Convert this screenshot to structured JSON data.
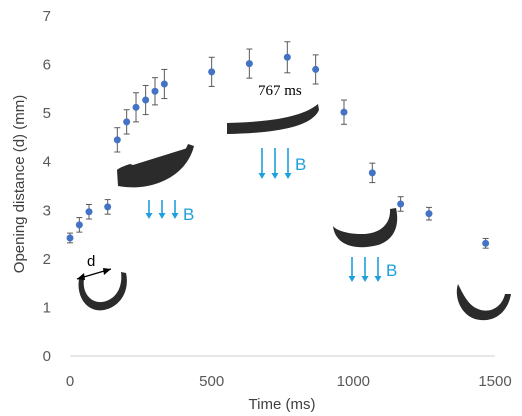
{
  "chart_data": {
    "type": "scatter",
    "xlabel": "Time (ms)",
    "ylabel": "Opening distance (d) (mm)",
    "xlim": [
      0,
      1500
    ],
    "ylim": [
      0,
      7
    ],
    "x_ticks": [
      "0",
      "500",
      "1000",
      "1500"
    ],
    "y_ticks": [
      "0",
      "1",
      "2",
      "3",
      "4",
      "5",
      "6",
      "7"
    ],
    "grid": false,
    "legend": "none",
    "marker_color": "#4472c4",
    "series": [
      {
        "x": [
          0,
          33,
          67,
          133,
          167,
          200,
          233,
          267,
          300,
          333,
          500,
          633,
          767,
          867,
          967,
          1067,
          1167,
          1267,
          1467
        ],
        "y": [
          2.43,
          2.7,
          2.97,
          3.07,
          4.45,
          4.82,
          5.12,
          5.27,
          5.45,
          5.6,
          5.85,
          6.02,
          6.15,
          5.9,
          5.02,
          3.77,
          3.13,
          2.93,
          2.32
        ],
        "error": [
          0.1,
          0.15,
          0.15,
          0.15,
          0.25,
          0.25,
          0.3,
          0.3,
          0.28,
          0.3,
          0.3,
          0.3,
          0.32,
          0.3,
          0.25,
          0.2,
          0.15,
          0.13,
          0.1
        ]
      }
    ],
    "annotations": {
      "time_label": "767 ms",
      "field_label": "B",
      "distance_label": "d"
    },
    "annotation_color": "#1ea0dc"
  }
}
